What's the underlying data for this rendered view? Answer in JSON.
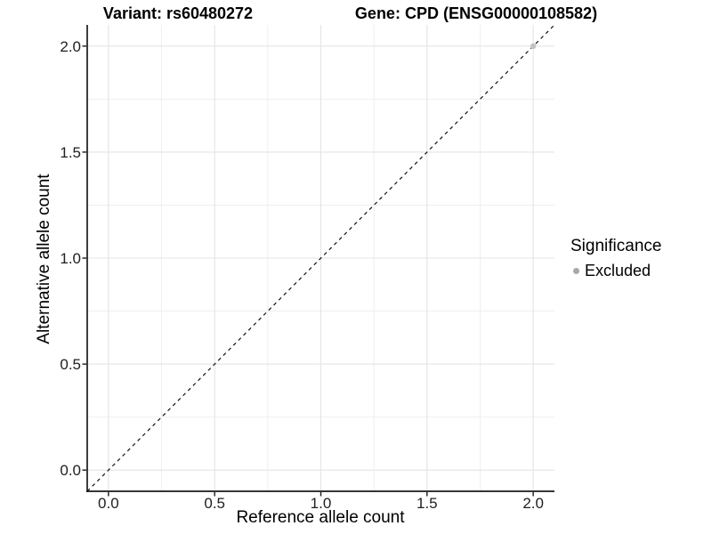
{
  "header": {
    "variant_title": "Variant: rs60480272",
    "gene_title": "Gene: CPD (ENSG00000108582)"
  },
  "chart_data": {
    "type": "scatter",
    "title_left": "Variant: rs60480272",
    "title_right": "Gene: CPD (ENSG00000108582)",
    "xlabel": "Reference allele count",
    "ylabel": "Alternative allele count",
    "xlim": [
      -0.1,
      2.1
    ],
    "ylim": [
      -0.1,
      2.1
    ],
    "x_ticks": [
      {
        "v": 0.0,
        "label": "0.0"
      },
      {
        "v": 0.5,
        "label": "0.5"
      },
      {
        "v": 1.0,
        "label": "1.0"
      },
      {
        "v": 1.5,
        "label": "1.5"
      },
      {
        "v": 2.0,
        "label": "2.0"
      }
    ],
    "y_ticks": [
      {
        "v": 0.0,
        "label": "0.0"
      },
      {
        "v": 0.5,
        "label": "0.5"
      },
      {
        "v": 1.0,
        "label": "1.0"
      },
      {
        "v": 1.5,
        "label": "1.5"
      },
      {
        "v": 2.0,
        "label": "2.0"
      }
    ],
    "minor_ticks": [
      0.25,
      0.75,
      1.25,
      1.75
    ],
    "grid": {
      "major_color": "#e4e4e4",
      "minor_color": "#efefef",
      "background": "#ffffff"
    },
    "axis": {
      "line_color": "#1a1a1a",
      "tick_color": "#1a1a1a",
      "tick_label_color": "#202020"
    },
    "reference_line": {
      "type": "identity y=x",
      "style": "dashed",
      "color": "#111111"
    },
    "points": [
      {
        "x": 2.0,
        "y": 2.0,
        "series": "Excluded",
        "color": "#c2c2c2"
      }
    ],
    "legend": {
      "title": "Significance",
      "position": "right",
      "entries": [
        {
          "label": "Excluded",
          "color": "#a8a8a8"
        }
      ]
    }
  }
}
